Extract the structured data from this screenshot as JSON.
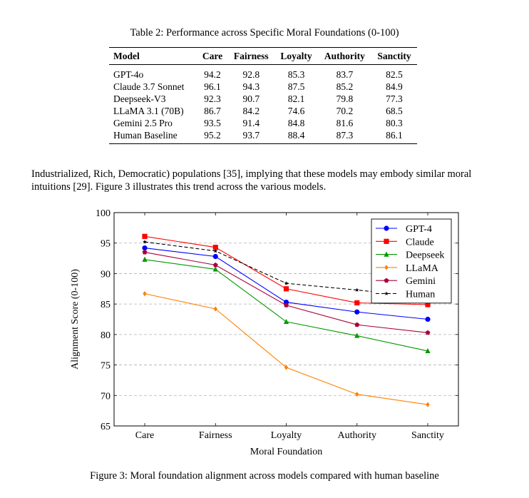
{
  "table": {
    "caption": "Table 2: Performance across Specific Moral Foundations (0-100)",
    "headers": [
      "Model",
      "Care",
      "Fairness",
      "Loyalty",
      "Authority",
      "Sanctity"
    ],
    "rows": [
      [
        "GPT-4o",
        "94.2",
        "92.8",
        "85.3",
        "83.7",
        "82.5"
      ],
      [
        "Claude 3.7 Sonnet",
        "96.1",
        "94.3",
        "87.5",
        "85.2",
        "84.9"
      ],
      [
        "Deepseek-V3",
        "92.3",
        "90.7",
        "82.1",
        "79.8",
        "77.3"
      ],
      [
        "LLaMA 3.1 (70B)",
        "86.7",
        "84.2",
        "74.6",
        "70.2",
        "68.5"
      ],
      [
        "Gemini 2.5 Pro",
        "93.5",
        "91.4",
        "84.8",
        "81.6",
        "80.3"
      ],
      [
        "Human Baseline",
        "95.2",
        "93.7",
        "88.4",
        "87.3",
        "86.1"
      ]
    ]
  },
  "body_text": "Industrialized, Rich, Democratic) populations [35], implying that these models may embody similar moral intuitions [29]. Figure 3 illustrates this trend across the various models.",
  "figure": {
    "caption": "Figure 3: Moral foundation alignment across models compared with human baseline"
  },
  "chart_data": {
    "type": "line",
    "categories": [
      "Care",
      "Fairness",
      "Loyalty",
      "Authority",
      "Sanctity"
    ],
    "xlabel": "Moral Foundation",
    "ylabel": "Alignment Score (0-100)",
    "ylim": [
      65,
      100
    ],
    "yticks": [
      65,
      70,
      75,
      80,
      85,
      90,
      95,
      100
    ],
    "grid": "horizontal dashed",
    "legend_position": "top-right",
    "series": [
      {
        "name": "GPT-4",
        "color": "#0000ff",
        "marker": "circle",
        "dashed": false,
        "values": [
          94.2,
          92.8,
          85.3,
          83.7,
          82.5
        ]
      },
      {
        "name": "Claude",
        "color": "#ff0000",
        "marker": "square",
        "dashed": false,
        "values": [
          96.1,
          94.3,
          87.5,
          85.2,
          84.9
        ]
      },
      {
        "name": "Deepseek",
        "color": "#009900",
        "marker": "triangle",
        "dashed": false,
        "values": [
          92.3,
          90.7,
          82.1,
          79.8,
          77.3
        ]
      },
      {
        "name": "LLaMA",
        "color": "#ff8000",
        "marker": "diamond",
        "dashed": false,
        "values": [
          86.7,
          84.2,
          74.6,
          70.2,
          68.5
        ]
      },
      {
        "name": "Gemini",
        "color": "#a8003c",
        "marker": "pentagon",
        "dashed": false,
        "values": [
          93.5,
          91.4,
          84.8,
          81.6,
          80.3
        ]
      },
      {
        "name": "Human",
        "color": "#000000",
        "marker": "star",
        "dashed": true,
        "values": [
          95.2,
          93.7,
          88.4,
          87.3,
          86.1
        ]
      }
    ]
  }
}
